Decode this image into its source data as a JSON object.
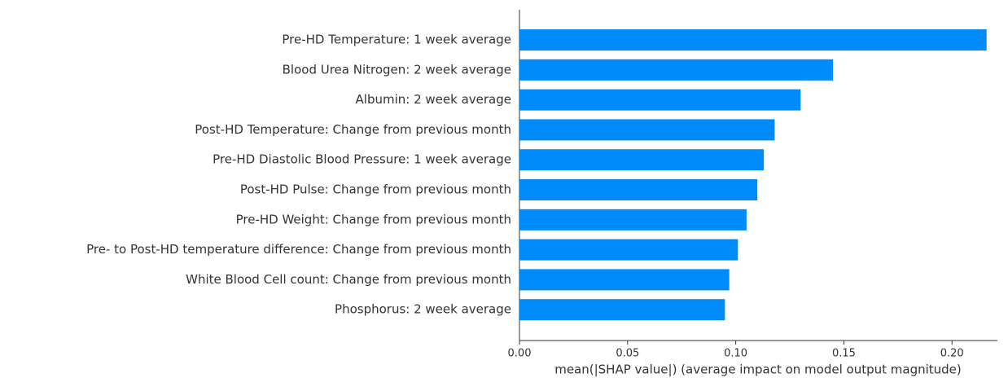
{
  "chart_data": {
    "type": "barh",
    "xlabel": "mean(|SHAP value|) (average impact on model output magnitude)",
    "categories": [
      "Pre-HD Temperature: 1 week average",
      "Blood Urea Nitrogen: 2 week average",
      "Albumin: 2 week average",
      "Post-HD Temperature: Change from previous month",
      "Pre-HD Diastolic Blood Pressure: 1 week average",
      "Post-HD Pulse: Change from previous month",
      "Pre-HD Weight: Change from previous month",
      "Pre- to Post-HD temperature difference: Change from previous month",
      "White Blood Cell count: Change from previous month",
      "Phosphorus: 2 week average"
    ],
    "values": [
      0.216,
      0.145,
      0.13,
      0.118,
      0.113,
      0.11,
      0.105,
      0.101,
      0.097,
      0.095
    ],
    "color": "#008bfb",
    "xlim": [
      0,
      0.221
    ],
    "xticks": [
      {
        "value": 0,
        "label": "0.00"
      },
      {
        "value": 0.05,
        "label": "0.05"
      },
      {
        "value": 0.1,
        "label": "0.10"
      },
      {
        "value": 0.15,
        "label": "0.15"
      },
      {
        "value": 0.2,
        "label": "0.20"
      }
    ]
  }
}
